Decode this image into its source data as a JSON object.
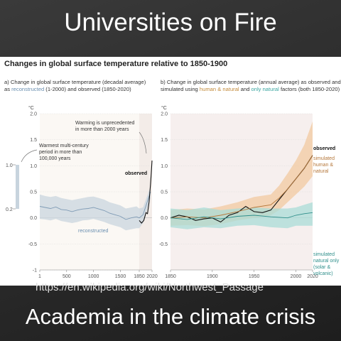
{
  "slide": {
    "title": "Universities on Fire",
    "footer": "Academia in the climate crisis",
    "url_text": "https://en.wikipedia.org/wiki/Northwest_Passage"
  },
  "figure": {
    "title": "Changes in global surface temperature relative to 1850-1900",
    "panel_a": {
      "caption_prefix": "a) Change in global surface temperature (decadal average)",
      "caption_as": "as",
      "caption_reconstructed": "reconstructed",
      "caption_middle": "(1-2000) and",
      "caption_observed": "observed",
      "caption_end": "(1850-2020)",
      "annotation_warming_1": "Warming is unprecedented",
      "annotation_warming_2": "in more than 2000 years",
      "annotation_warmest_1": "Warmest multi-century",
      "annotation_warmest_2": "period in more than",
      "annotation_warmest_3": "100,000 years",
      "label_observed": "observed",
      "label_reconstructed": "reconstructed",
      "side_bar_top": "1.0",
      "side_bar_bottom": "0.2"
    },
    "panel_b": {
      "caption_prefix": "b) Change in global surface temperature (annual average) as",
      "caption_observed": "observed",
      "caption_and": "and",
      "caption_simulated": "simulated using",
      "caption_hn": "human & natural",
      "caption_and2": "and",
      "caption_nat": "only natural",
      "caption_end": "factors (both 1850-2020)",
      "label_observed": "observed",
      "label_sim_hn_1": "simulated",
      "label_sim_hn_2": "human &",
      "label_sim_hn_3": "natural",
      "label_sim_nat_1": "simulated",
      "label_sim_nat_2": "natural only",
      "label_sim_nat_3": "(solar &",
      "label_sim_nat_4": "volcanic)"
    },
    "unit": "°C"
  },
  "chart_data": [
    {
      "type": "line",
      "panel": "a",
      "x_ticks": [
        "1",
        "500",
        "1000",
        "1500",
        "1850",
        "2020"
      ],
      "y_ticks": [
        "2.0",
        "1.5",
        "1.0",
        "0.5",
        "0.0",
        "-0.5",
        "-1"
      ],
      "xlim": [
        1,
        2020
      ],
      "ylim": [
        -1,
        2
      ],
      "series": [
        {
          "name": "reconstructed",
          "color": "#7f9bb5",
          "band_color": "#c9d5df",
          "x": [
            1,
            100,
            200,
            300,
            400,
            500,
            600,
            700,
            800,
            900,
            1000,
            1100,
            1200,
            1300,
            1400,
            1500,
            1600,
            1700,
            1800,
            1850,
            1900,
            2000
          ],
          "y": [
            0.22,
            0.2,
            0.18,
            0.21,
            0.16,
            0.15,
            0.12,
            0.15,
            0.17,
            0.18,
            0.2,
            0.17,
            0.14,
            0.09,
            0.06,
            0.03,
            -0.03,
            0.0,
            0.02,
            0.0,
            0.06,
            0.5
          ],
          "band_upper": [
            0.45,
            0.42,
            0.4,
            0.42,
            0.38,
            0.36,
            0.34,
            0.36,
            0.38,
            0.4,
            0.41,
            0.38,
            0.35,
            0.3,
            0.27,
            0.24,
            0.18,
            0.2,
            0.22,
            0.18,
            0.2,
            0.6
          ],
          "band_lower": [
            -0.02,
            -0.03,
            -0.05,
            -0.02,
            -0.06,
            -0.08,
            -0.1,
            -0.08,
            -0.05,
            -0.04,
            -0.02,
            -0.05,
            -0.08,
            -0.12,
            -0.15,
            -0.18,
            -0.24,
            -0.22,
            -0.2,
            -0.2,
            -0.1,
            0.38
          ]
        },
        {
          "name": "observed",
          "color": "#111111",
          "x": [
            1850,
            1880,
            1910,
            1940,
            1960,
            1980,
            2000,
            2010,
            2020
          ],
          "y": [
            -0.05,
            -0.1,
            -0.05,
            0.1,
            0.08,
            0.3,
            0.65,
            0.85,
            1.1
          ]
        }
      ]
    },
    {
      "type": "line",
      "panel": "b",
      "x_ticks": [
        "1850",
        "1900",
        "1950",
        "2000",
        "2020"
      ],
      "y_ticks": [
        "2.0",
        "1.5",
        "1.0",
        "0.5",
        "0.0",
        "-0.5"
      ],
      "xlim": [
        1850,
        2020
      ],
      "ylim": [
        -1,
        2
      ],
      "series": [
        {
          "name": "observed",
          "color": "#111111",
          "x": [
            1850,
            1860,
            1870,
            1880,
            1890,
            1900,
            1910,
            1920,
            1930,
            1940,
            1950,
            1960,
            1970,
            1980,
            1990,
            2000,
            2010,
            2020
          ],
          "y": [
            0.0,
            0.05,
            0.02,
            -0.05,
            -0.02,
            0.0,
            -0.08,
            0.05,
            0.1,
            0.22,
            0.12,
            0.1,
            0.15,
            0.35,
            0.55,
            0.75,
            0.95,
            1.2
          ]
        },
        {
          "name": "simulated human & natural",
          "color": "#b5773a",
          "band_color": "#f1c9a0",
          "x": [
            1850,
            1870,
            1890,
            1910,
            1930,
            1950,
            1970,
            1980,
            1990,
            2000,
            2010,
            2020
          ],
          "y": [
            0.0,
            0.02,
            0.0,
            0.05,
            0.12,
            0.2,
            0.25,
            0.38,
            0.55,
            0.75,
            0.95,
            1.2
          ],
          "band_upper": [
            0.15,
            0.18,
            0.16,
            0.22,
            0.3,
            0.4,
            0.45,
            0.62,
            0.85,
            1.1,
            1.4,
            1.85
          ],
          "band_lower": [
            -0.15,
            -0.14,
            -0.16,
            -0.12,
            -0.05,
            0.0,
            0.05,
            0.15,
            0.3,
            0.45,
            0.6,
            0.8
          ]
        },
        {
          "name": "simulated natural only (solar & volcanic)",
          "color": "#2f8f8b",
          "band_color": "#a9dcd7",
          "x": [
            1850,
            1870,
            1890,
            1910,
            1930,
            1950,
            1970,
            1990,
            2000,
            2010,
            2020
          ],
          "y": [
            0.0,
            -0.03,
            0.02,
            -0.02,
            0.03,
            0.05,
            0.02,
            0.0,
            0.05,
            0.08,
            0.1
          ],
          "band_upper": [
            0.18,
            0.15,
            0.2,
            0.15,
            0.18,
            0.2,
            0.18,
            0.18,
            0.2,
            0.25,
            0.3
          ],
          "band_lower": [
            -0.18,
            -0.22,
            -0.18,
            -0.2,
            -0.15,
            -0.14,
            -0.18,
            -0.2,
            -0.15,
            -0.15,
            -0.15
          ]
        }
      ]
    }
  ]
}
